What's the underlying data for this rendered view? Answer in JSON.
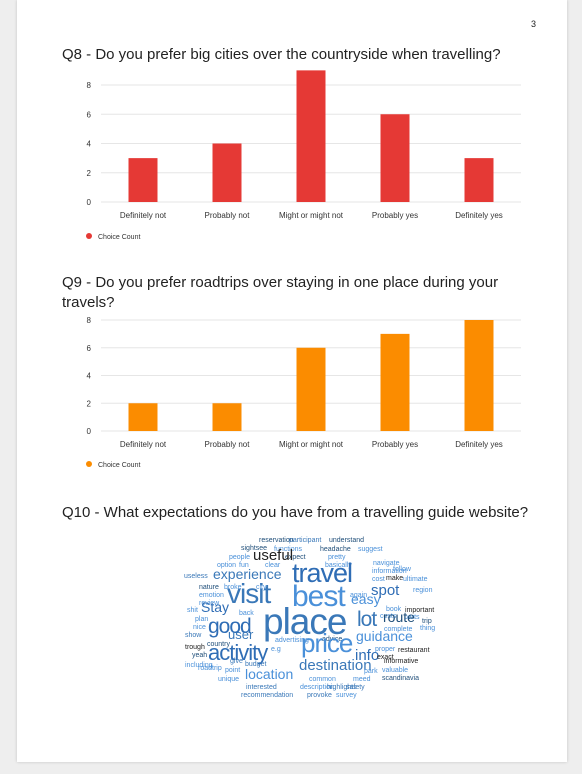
{
  "page_number": "3",
  "questions": {
    "q8": {
      "title": "Q8 - Do you prefer big cities over the countryside when travelling?"
    },
    "q9": {
      "title": "Q9 - Do you prefer roadtrips over staying in one place during your travels?"
    },
    "q10": {
      "title": "Q10 - What expectations do you have from a travelling guide website?"
    }
  },
  "chart_data": [
    {
      "type": "bar",
      "categories": [
        "Definitely not",
        "Probably not",
        "Might or might not",
        "Probably yes",
        "Definitely yes"
      ],
      "series": [
        {
          "name": "Choice Count",
          "values": [
            3,
            4,
            9,
            6,
            3
          ]
        }
      ],
      "ylim": [
        0,
        8
      ],
      "yticks": [
        0,
        2,
        4,
        6,
        8
      ],
      "color": "#e53935",
      "legend": "bottom-left",
      "grid": true
    },
    {
      "type": "bar",
      "categories": [
        "Definitely not",
        "Probably not",
        "Might or might not",
        "Probably yes",
        "Definitely yes"
      ],
      "series": [
        {
          "name": "Choice Count",
          "values": [
            2,
            2,
            6,
            7,
            8
          ]
        }
      ],
      "ylim": [
        0,
        8
      ],
      "yticks": [
        0,
        2,
        4,
        6,
        8
      ],
      "color": "#fb8c00",
      "legend": "bottom-left",
      "grid": true
    }
  ],
  "wordcloud": {
    "words": [
      "reservation",
      "participant",
      "understand",
      "sightsee",
      "functions",
      "headache",
      "suggest",
      "people",
      "expect",
      "pretty",
      "option",
      "fun",
      "clear",
      "basically",
      "navigate",
      "useful",
      "information",
      "follow",
      "useless",
      "experience",
      "travel",
      "cost",
      "make",
      "ultimate",
      "nature",
      "broke",
      "city",
      "region",
      "emotion",
      "again",
      "review",
      "visit",
      "best",
      "easy",
      "spot",
      "book",
      "important",
      "shit",
      "Stay",
      "back",
      "costs",
      "parts",
      "plan",
      "route",
      "trip",
      "nice",
      "good",
      "lot",
      "complete",
      "thing",
      "show",
      "user",
      "place",
      "guidance",
      "advertising",
      "advice",
      "trough",
      "country",
      "e.g",
      "price",
      "info",
      "proper",
      "yeah",
      "activity",
      "exact",
      "restaurant",
      "including",
      "give",
      "informative",
      "budget",
      "destination",
      "roadtrip",
      "point",
      "park",
      "valuable",
      "location",
      "common",
      "meed",
      "scandinavia",
      "unique",
      "interested",
      "description",
      "highlights",
      "safety",
      "recommendation",
      "provoke",
      "survey"
    ]
  }
}
